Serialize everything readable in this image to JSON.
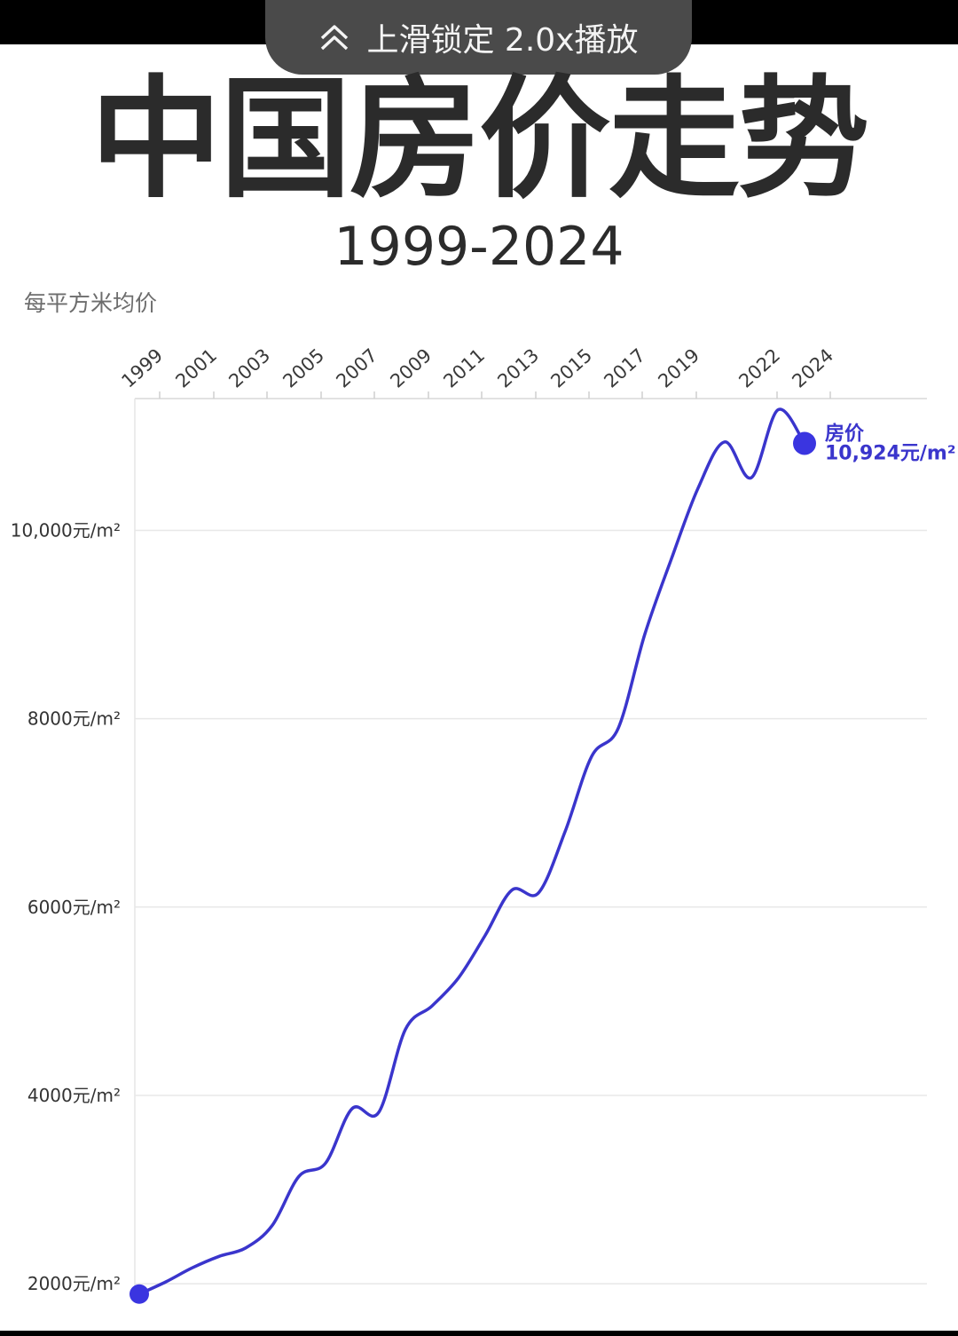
{
  "overlay": {
    "speed_text": "上滑锁定 2.0x播放",
    "icon": "double-chevron-up-icon"
  },
  "chart_data": {
    "type": "line",
    "title": "中国房价走势",
    "subtitle": "1999-2024",
    "ylabel": "每平方米均价",
    "x_tick_labels": [
      "1999",
      "2001",
      "2003",
      "2005",
      "2007",
      "2009",
      "2011",
      "2013",
      "2015",
      "2017",
      "2019",
      "2022",
      "2024"
    ],
    "y_ticks": [
      {
        "value": 2000,
        "label": "2000元/m²"
      },
      {
        "value": 4000,
        "label": "4000元/m²"
      },
      {
        "value": 6000,
        "label": "6000元/m²"
      },
      {
        "value": 8000,
        "label": "8000元/m²"
      },
      {
        "value": 10000,
        "label": "10,000元/m²"
      }
    ],
    "ylim": [
      1850,
      11400
    ],
    "xlim": [
      1999,
      2024
    ],
    "series": [
      {
        "name": "房价",
        "color": "#3a35cc",
        "points": [
          [
            1999.0,
            1890
          ],
          [
            2000.0,
            2020
          ],
          [
            2001.0,
            2170
          ],
          [
            2002.0,
            2290
          ],
          [
            2003.0,
            2380
          ],
          [
            2004.0,
            2620
          ],
          [
            2005.0,
            3140
          ],
          [
            2006.0,
            3280
          ],
          [
            2007.0,
            3860
          ],
          [
            2008.0,
            3820
          ],
          [
            2009.0,
            4700
          ],
          [
            2010.0,
            4950
          ],
          [
            2011.0,
            5250
          ],
          [
            2012.0,
            5700
          ],
          [
            2013.0,
            6180
          ],
          [
            2014.0,
            6150
          ],
          [
            2015.0,
            6800
          ],
          [
            2016.0,
            7600
          ],
          [
            2017.0,
            7900
          ],
          [
            2018.0,
            8900
          ],
          [
            2019.0,
            9700
          ],
          [
            2020.0,
            10450
          ],
          [
            2021.0,
            10940
          ],
          [
            2022.0,
            10560
          ],
          [
            2023.0,
            11280
          ],
          [
            2024.0,
            10924
          ]
        ]
      }
    ],
    "end_label": {
      "name": "房价",
      "value_text": "10,924元/m²"
    },
    "grid": true
  }
}
